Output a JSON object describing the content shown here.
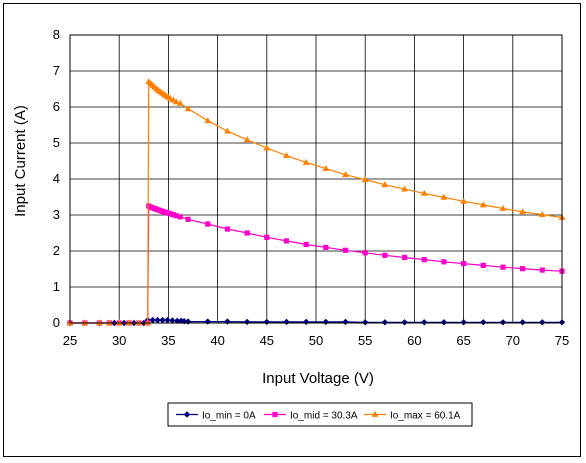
{
  "chart_data": {
    "type": "line",
    "title": "",
    "xlabel": "Input Voltage (V)",
    "ylabel": "Input Current (A)",
    "xlim": [
      25,
      75
    ],
    "ylim": [
      0,
      8
    ],
    "xticks": [
      25,
      30,
      35,
      40,
      45,
      50,
      55,
      60,
      65,
      70,
      75
    ],
    "yticks": [
      0,
      1,
      2,
      3,
      4,
      5,
      6,
      7,
      8
    ],
    "grid": true,
    "legend_position": "bottom",
    "series": [
      {
        "name": "Io_min = 0A",
        "color": "#000080",
        "marker": "diamond",
        "points": [
          [
            25,
            0
          ],
          [
            26.5,
            0
          ],
          [
            28,
            0
          ],
          [
            29.5,
            0
          ],
          [
            30.5,
            0
          ],
          [
            31.5,
            0
          ],
          [
            32.5,
            0
          ],
          [
            32.9,
            0.08
          ],
          [
            33.4,
            0.08
          ],
          [
            33.9,
            0.08
          ],
          [
            34.4,
            0.08
          ],
          [
            34.9,
            0.08
          ],
          [
            35.4,
            0.07
          ],
          [
            35.9,
            0.06
          ],
          [
            36.3,
            0.06
          ],
          [
            36.6,
            0.05
          ],
          [
            37,
            0.04
          ],
          [
            39,
            0.04
          ],
          [
            41,
            0.04
          ],
          [
            43,
            0.03
          ],
          [
            45,
            0.03
          ],
          [
            47,
            0.03
          ],
          [
            49,
            0.03
          ],
          [
            51,
            0.03
          ],
          [
            53,
            0.03
          ],
          [
            55,
            0.02
          ],
          [
            57,
            0.02
          ],
          [
            59,
            0.02
          ],
          [
            61,
            0.02
          ],
          [
            63,
            0.02
          ],
          [
            65,
            0.02
          ],
          [
            67,
            0.02
          ],
          [
            69,
            0.02
          ],
          [
            71,
            0.02
          ],
          [
            73,
            0.02
          ],
          [
            75,
            0.02
          ]
        ]
      },
      {
        "name": "Io_mid = 30.3A",
        "color": "#ff00cc",
        "marker": "square",
        "points": [
          [
            25,
            0
          ],
          [
            26.5,
            0
          ],
          [
            28,
            0
          ],
          [
            29,
            0
          ],
          [
            30,
            0
          ],
          [
            31,
            0
          ],
          [
            32,
            0
          ],
          [
            32.9,
            0
          ],
          [
            33,
            3.25
          ],
          [
            33.2,
            3.22
          ],
          [
            33.4,
            3.2
          ],
          [
            33.6,
            3.18
          ],
          [
            33.8,
            3.16
          ],
          [
            34,
            3.14
          ],
          [
            34.2,
            3.12
          ],
          [
            34.4,
            3.1
          ],
          [
            34.6,
            3.08
          ],
          [
            34.8,
            3.07
          ],
          [
            35,
            3.05
          ],
          [
            35.2,
            3.03
          ],
          [
            35.5,
            3.01
          ],
          [
            35.8,
            2.98
          ],
          [
            36.2,
            2.95
          ],
          [
            37,
            2.88
          ],
          [
            39,
            2.75
          ],
          [
            41,
            2.61
          ],
          [
            43,
            2.5
          ],
          [
            45,
            2.38
          ],
          [
            47,
            2.28
          ],
          [
            49,
            2.18
          ],
          [
            51,
            2.1
          ],
          [
            53,
            2.02
          ],
          [
            55,
            1.95
          ],
          [
            57,
            1.88
          ],
          [
            59,
            1.82
          ],
          [
            61,
            1.76
          ],
          [
            63,
            1.7
          ],
          [
            65,
            1.65
          ],
          [
            67,
            1.6
          ],
          [
            69,
            1.55
          ],
          [
            71,
            1.51
          ],
          [
            73,
            1.47
          ],
          [
            75,
            1.44
          ]
        ]
      },
      {
        "name": "Io_max = 60.1A",
        "color": "#ff8000",
        "marker": "triangle",
        "points": [
          [
            25,
            0
          ],
          [
            26.5,
            0
          ],
          [
            28,
            0
          ],
          [
            29,
            0
          ],
          [
            30,
            0
          ],
          [
            31,
            0
          ],
          [
            32,
            0
          ],
          [
            32.9,
            0
          ],
          [
            33,
            6.7
          ],
          [
            33.2,
            6.65
          ],
          [
            33.4,
            6.6
          ],
          [
            33.6,
            6.55
          ],
          [
            33.8,
            6.5
          ],
          [
            34,
            6.46
          ],
          [
            34.2,
            6.42
          ],
          [
            34.4,
            6.38
          ],
          [
            34.6,
            6.34
          ],
          [
            34.8,
            6.3
          ],
          [
            35,
            6.27
          ],
          [
            35.2,
            6.23
          ],
          [
            35.5,
            6.19
          ],
          [
            35.8,
            6.14
          ],
          [
            36.2,
            6.1
          ],
          [
            37,
            5.95
          ],
          [
            39,
            5.62
          ],
          [
            41,
            5.33
          ],
          [
            43,
            5.09
          ],
          [
            45,
            4.86
          ],
          [
            47,
            4.65
          ],
          [
            49,
            4.46
          ],
          [
            51,
            4.29
          ],
          [
            53,
            4.12
          ],
          [
            55,
            3.98
          ],
          [
            57,
            3.84
          ],
          [
            59,
            3.72
          ],
          [
            61,
            3.6
          ],
          [
            63,
            3.49
          ],
          [
            65,
            3.38
          ],
          [
            67,
            3.28
          ],
          [
            69,
            3.18
          ],
          [
            71,
            3.09
          ],
          [
            73,
            3.01
          ],
          [
            75,
            2.93
          ]
        ]
      }
    ]
  }
}
